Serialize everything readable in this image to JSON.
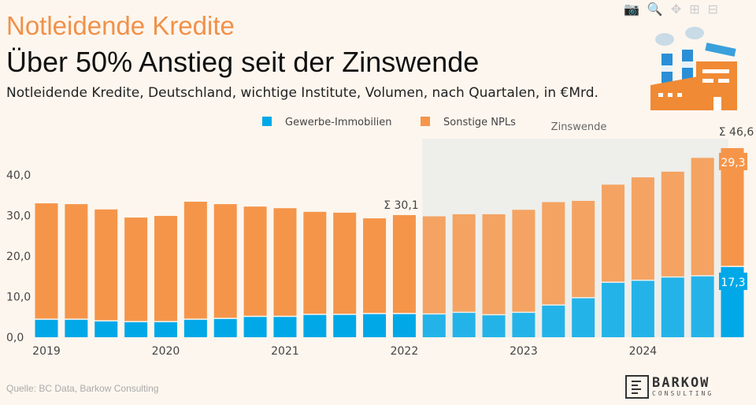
{
  "header": {
    "kicker": "Notleidende Kredite",
    "title": "Über 50% Anstieg seit der Zinswende",
    "subtitle": "Notleidende Kredite, Deutschland, wichtige Institute, Volumen, nach Quartalen, in €Mrd."
  },
  "source": "Quelle: BC Data, Barkow Consulting",
  "logo": {
    "name": "BARKOW",
    "sub": "CONSULTING"
  },
  "toolbar": [
    "camera-icon",
    "zoom-icon",
    "pan-icon",
    "zoom-in-icon",
    "zoom-out-icon"
  ],
  "chart_data": {
    "type": "bar",
    "stacked": true,
    "categories": [
      "2019Q1",
      "2019Q2",
      "2019Q3",
      "2019Q4",
      "2020Q1",
      "2020Q2",
      "2020Q3",
      "2020Q4",
      "2021Q1",
      "2021Q2",
      "2021Q3",
      "2021Q4",
      "2022Q1",
      "2022Q2",
      "2022Q3",
      "2022Q4",
      "2023Q1",
      "2023Q2",
      "2023Q3",
      "2023Q4",
      "2024Q1",
      "2024Q2",
      "2024Q3",
      "2024Q4"
    ],
    "x_tick_labels": [
      "2019",
      "2020",
      "2021",
      "2022",
      "2023",
      "2024"
    ],
    "y_tick_labels": [
      "0,0",
      "10,0",
      "20,0",
      "30,0",
      "40,0"
    ],
    "ylim": [
      0,
      48
    ],
    "series": [
      {
        "name": "Gewerbe-Immobilien",
        "color": "#00a8e8",
        "values": [
          4.3,
          4.3,
          3.9,
          3.7,
          3.7,
          4.3,
          4.5,
          5.0,
          5.0,
          5.5,
          5.5,
          5.7,
          5.7,
          5.6,
          6.0,
          5.4,
          6.0,
          7.8,
          9.6,
          13.4,
          13.9,
          14.7,
          15.0,
          17.3
        ]
      },
      {
        "name": "Sonstige NPLs",
        "color": "#f5954a",
        "values": [
          28.7,
          28.5,
          27.6,
          25.8,
          26.2,
          29.1,
          28.3,
          27.2,
          26.8,
          25.4,
          25.2,
          23.6,
          24.4,
          24.2,
          24.3,
          24.9,
          25.4,
          25.5,
          24.0,
          24.2,
          25.5,
          26.1,
          29.2,
          29.3
        ]
      }
    ],
    "annotations": {
      "sum_2022": "Σ 30,1",
      "sum_last": "Σ 46,6",
      "last_other": "29,3",
      "last_cre": "17,3",
      "zinswende": "Zinswende"
    },
    "zinswende_start_index": 13,
    "legend": "top-center"
  }
}
